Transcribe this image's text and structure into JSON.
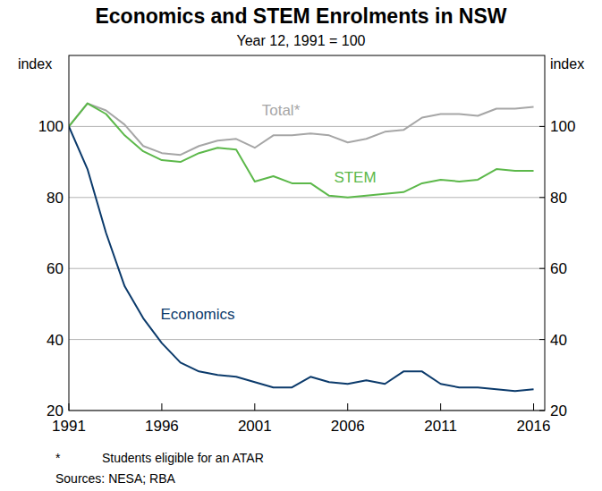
{
  "chart_data": {
    "type": "line",
    "title": "Economics and STEM Enrolments in NSW",
    "subtitle": "Year 12, 1991 = 100",
    "y_label": "index",
    "y2_label": "index",
    "x": [
      1991,
      1992,
      1993,
      1994,
      1995,
      1996,
      1997,
      1998,
      1999,
      2000,
      2001,
      2002,
      2003,
      2004,
      2005,
      2006,
      2007,
      2008,
      2009,
      2010,
      2011,
      2012,
      2013,
      2014,
      2015,
      2016
    ],
    "series": [
      {
        "name": "Total*",
        "color": "#a6a6a6",
        "values": [
          100,
          106.5,
          104.5,
          100.5,
          94.5,
          92.5,
          92,
          94.5,
          96,
          96.5,
          94,
          97.5,
          97.5,
          98,
          97.5,
          95.5,
          96.5,
          98.5,
          99,
          102.5,
          103.5,
          103.5,
          103,
          105,
          105,
          105.5
        ]
      },
      {
        "name": "STEM",
        "color": "#5cb84a",
        "values": [
          100,
          106.5,
          103.5,
          97.5,
          93,
          90.5,
          90,
          92.5,
          94,
          93.5,
          84.5,
          86,
          84,
          84,
          80.5,
          80,
          80.5,
          81,
          81.5,
          84,
          85,
          84.5,
          85,
          88,
          87.5,
          87.5
        ]
      },
      {
        "name": "Economics",
        "color": "#0b3a6b",
        "values": [
          100,
          88,
          70,
          55,
          46,
          39,
          33.5,
          31,
          30,
          29.5,
          28,
          26.5,
          26.5,
          29.5,
          28,
          27.5,
          28.5,
          27.5,
          31,
          31,
          27.5,
          26.5,
          26.5,
          26,
          25.5,
          26
        ]
      }
    ],
    "xlim": [
      1991,
      2016.6
    ],
    "xticks": [
      1991,
      1996,
      2001,
      2006,
      2011,
      2016
    ],
    "ylim": [
      20,
      120
    ],
    "yticks": [
      20,
      40,
      60,
      80,
      100
    ],
    "y2lim": [
      20,
      120
    ],
    "y2ticks": [
      20,
      40,
      60,
      80,
      100
    ],
    "grid": true,
    "notes": [
      {
        "symbol": "*",
        "text": "Students eligible for an ATAR"
      }
    ],
    "source": "Sources: NESA; RBA"
  }
}
